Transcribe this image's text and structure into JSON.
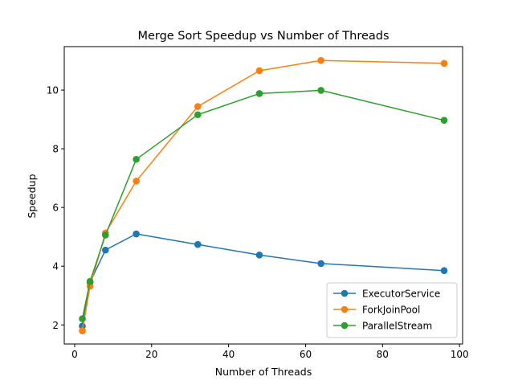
{
  "chart_data": {
    "type": "line",
    "title": "Merge Sort Speedup vs Number of Threads",
    "xlabel": "Number of Threads",
    "ylabel": "Speedup",
    "xlim": [
      -2.7,
      100.8
    ],
    "ylim": [
      1.35,
      11.48
    ],
    "xticks": [
      0,
      20,
      40,
      60,
      80,
      100
    ],
    "yticks": [
      2,
      4,
      6,
      8,
      10
    ],
    "grid": false,
    "legend_position": "lower-right",
    "x": [
      2,
      4,
      8,
      16,
      32,
      48,
      64,
      96
    ],
    "series": [
      {
        "name": "ExecutorService",
        "color": "#1f77b4",
        "values": [
          1.96,
          3.45,
          4.55,
          5.1,
          4.74,
          4.38,
          4.09,
          3.85
        ]
      },
      {
        "name": "ForkJoinPool",
        "color": "#ff7f0e",
        "values": [
          1.8,
          3.32,
          5.13,
          6.9,
          9.44,
          10.66,
          11.01,
          10.91
        ]
      },
      {
        "name": "ParallelStream",
        "color": "#2ca02c",
        "values": [
          2.21,
          3.48,
          5.06,
          7.64,
          9.16,
          9.88,
          9.99,
          8.97
        ]
      }
    ]
  }
}
